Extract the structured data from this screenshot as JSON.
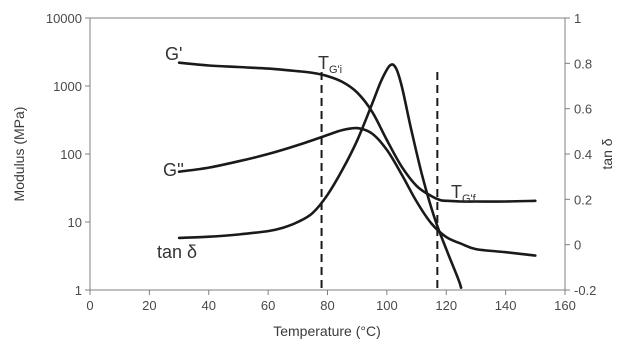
{
  "chart_data": {
    "type": "line",
    "xlabel": "Temperature (°C)",
    "ylabel_left": "Modulus (MPa)",
    "ylabel_right": "tan δ",
    "xlim": [
      0,
      160
    ],
    "x_ticks": [
      "0",
      "20",
      "40",
      "60",
      "80",
      "100",
      "120",
      "140",
      "160"
    ],
    "ylim_left": [
      1,
      10000
    ],
    "y_left_scale": "log",
    "y_left_ticks": [
      "1",
      "10",
      "100",
      "1000",
      "10000"
    ],
    "ylim_right": [
      -0.2,
      1
    ],
    "y_right_ticks": [
      "-0.2",
      "0",
      "0.2",
      "0.4",
      "0.6",
      "0.8",
      "1"
    ],
    "grid": false,
    "line_color": "#1a1a1a",
    "series": [
      {
        "name": "G'",
        "axis": "left",
        "x": [
          30,
          40,
          50,
          60,
          70,
          75,
          80,
          85,
          90,
          95,
          100,
          105,
          110,
          115,
          118,
          120,
          125,
          130,
          140,
          150
        ],
        "values": [
          2200,
          2000,
          1900,
          1800,
          1650,
          1560,
          1400,
          1150,
          800,
          420,
          160,
          65,
          34,
          24,
          21,
          20.5,
          20,
          20,
          20,
          20.5
        ]
      },
      {
        "name": "G''",
        "axis": "left",
        "x": [
          30,
          40,
          50,
          60,
          70,
          80,
          85,
          90,
          95,
          100,
          105,
          110,
          115,
          120,
          125,
          130,
          140,
          150
        ],
        "values": [
          55,
          63,
          78,
          100,
          135,
          190,
          225,
          240,
          200,
          115,
          50,
          20,
          9.5,
          6,
          4.8,
          4,
          3.6,
          3.2
        ]
      },
      {
        "name": "tan δ",
        "axis": "right",
        "x": [
          30,
          40,
          50,
          60,
          65,
          70,
          75,
          80,
          85,
          90,
          95,
          98,
          101,
          103,
          105,
          108,
          112,
          116,
          120,
          124,
          125
        ],
        "values": [
          0.03,
          0.035,
          0.045,
          0.06,
          0.075,
          0.1,
          0.14,
          0.22,
          0.33,
          0.46,
          0.62,
          0.72,
          0.79,
          0.78,
          0.7,
          0.52,
          0.3,
          0.12,
          -0.02,
          -0.15,
          -0.19
        ]
      }
    ],
    "reference_lines": [
      {
        "x": 78,
        "label_main": "T",
        "label_sub": "G'i",
        "style": "dashed"
      },
      {
        "x": 117,
        "label_main": "T",
        "label_sub": "G'f",
        "style": "dashed"
      }
    ],
    "annotations": [
      {
        "text": "G'",
        "series": 0
      },
      {
        "text": "G''",
        "series": 1
      },
      {
        "text": "tan δ",
        "series": 2
      }
    ]
  }
}
